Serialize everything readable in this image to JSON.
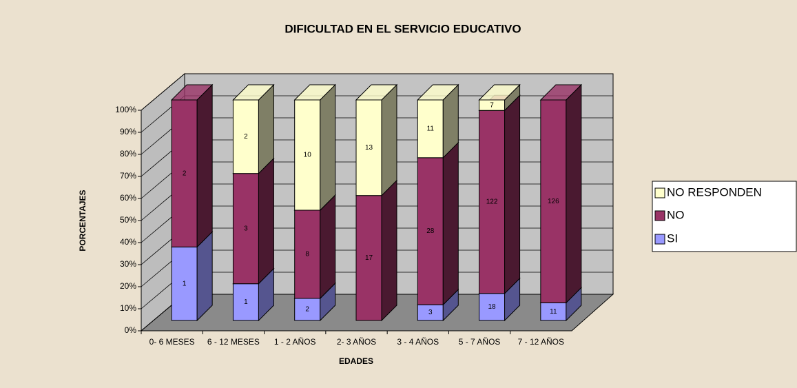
{
  "chart_data": {
    "type": "bar",
    "stacking": "percent",
    "title": "DIFICULTAD EN EL SERVICIO EDUCATIVO",
    "y_label": "PORCENTAJES",
    "x_label": "EDADES",
    "categories": [
      "0- 6 MESES",
      "6 - 12 MESES",
      "1 - 2 AÑOS",
      "2- 3 AÑOS",
      "3 - 4 AÑOS",
      "5 - 7 AÑOS",
      "7 - 12 AÑOS"
    ],
    "series": [
      {
        "name": "SI",
        "color": "#9999ff",
        "side": "#55558f",
        "values": [
          1,
          1,
          2,
          null,
          3,
          18,
          11
        ]
      },
      {
        "name": "NO",
        "color": "#993366",
        "side": "#4a1930",
        "values": [
          2,
          3,
          8,
          17,
          28,
          122,
          126
        ]
      },
      {
        "name": "NO RESPONDEN",
        "color": "#ffffcc",
        "side": "#7f7f66",
        "values": [
          null,
          2,
          10,
          13,
          11,
          7,
          null
        ]
      }
    ],
    "ylim": [
      0,
      100
    ],
    "yticks": [
      {
        "value": 0,
        "label": "0%"
      },
      {
        "value": 10,
        "label": "10%"
      },
      {
        "value": 20,
        "label": "20%"
      },
      {
        "value": 30,
        "label": "30%"
      },
      {
        "value": 40,
        "label": "40%"
      },
      {
        "value": 50,
        "label": "50%"
      },
      {
        "value": 60,
        "label": "60%"
      },
      {
        "value": 70,
        "label": "70%"
      },
      {
        "value": 80,
        "label": "80%"
      },
      {
        "value": 90,
        "label": "90%"
      },
      {
        "value": 100,
        "label": "100%"
      }
    ],
    "grid": true,
    "legend": "right"
  }
}
